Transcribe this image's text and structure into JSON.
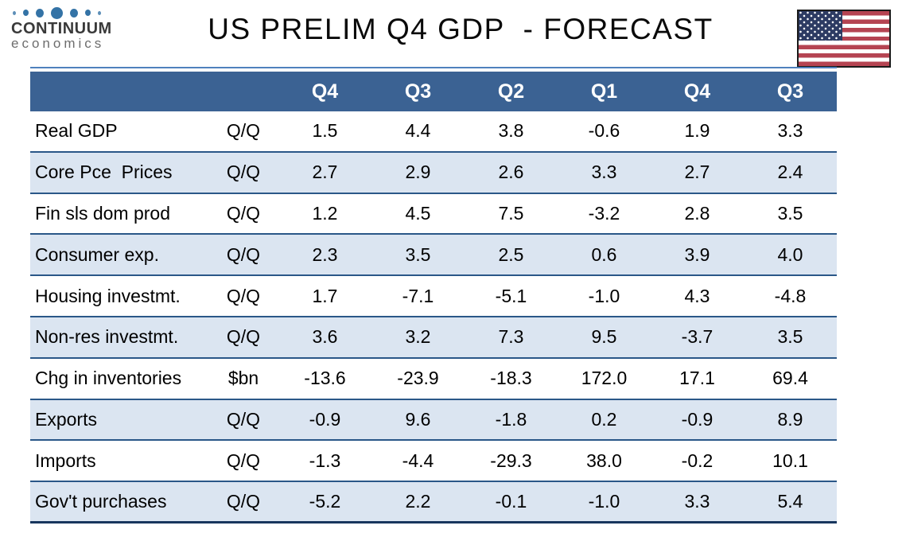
{
  "logo": {
    "brand": "CONTINUUM",
    "brand_sub": "economics",
    "dot_color": "#3473a6"
  },
  "title": "US PRELIM Q4 GDP  - FORECAST",
  "colors": {
    "header_bg": "#3b6293",
    "row_alt_bg": "#dbe5f1",
    "row_separator": "#2a5788",
    "bottom_border": "#17365d",
    "flag_red": "#b54452",
    "flag_blue": "#2d3b63"
  },
  "chart_data": {
    "type": "table",
    "title": "US PRELIM Q4 GDP  - FORECAST",
    "columns": [
      "Q4",
      "Q3",
      "Q2",
      "Q1",
      "Q4",
      "Q3"
    ],
    "rows": [
      {
        "label": "Real GDP",
        "unit": "Q/Q",
        "values": [
          "1.5",
          "4.4",
          "3.8",
          "-0.6",
          "1.9",
          "3.3"
        ]
      },
      {
        "label": "Core Pce  Prices",
        "unit": "Q/Q",
        "values": [
          "2.7",
          "2.9",
          "2.6",
          "3.3",
          "2.7",
          "2.4"
        ]
      },
      {
        "label": "Fin sls dom prod",
        "unit": "Q/Q",
        "values": [
          "1.2",
          "4.5",
          "7.5",
          "-3.2",
          "2.8",
          "3.5"
        ]
      },
      {
        "label": "Consumer exp.",
        "unit": "Q/Q",
        "values": [
          "2.3",
          "3.5",
          "2.5",
          "0.6",
          "3.9",
          "4.0"
        ]
      },
      {
        "label": "Housing investmt.",
        "unit": "Q/Q",
        "values": [
          "1.7",
          "-7.1",
          "-5.1",
          "-1.0",
          "4.3",
          "-4.8"
        ]
      },
      {
        "label": "Non-res investmt.",
        "unit": "Q/Q",
        "values": [
          "3.6",
          "3.2",
          "7.3",
          "9.5",
          "-3.7",
          "3.5"
        ]
      },
      {
        "label": "Chg in inventories",
        "unit": "$bn",
        "values": [
          "-13.6",
          "-23.9",
          "-18.3",
          "172.0",
          "17.1",
          "69.4"
        ]
      },
      {
        "label": "Exports",
        "unit": "Q/Q",
        "values": [
          "-0.9",
          "9.6",
          "-1.8",
          "0.2",
          "-0.9",
          "8.9"
        ]
      },
      {
        "label": "Imports",
        "unit": "Q/Q",
        "values": [
          "-1.3",
          "-4.4",
          "-29.3",
          "38.0",
          "-0.2",
          "10.1"
        ]
      },
      {
        "label": "Gov't purchases",
        "unit": "Q/Q",
        "values": [
          "-5.2",
          "2.2",
          "-0.1",
          "-1.0",
          "3.3",
          "5.4"
        ]
      }
    ]
  }
}
